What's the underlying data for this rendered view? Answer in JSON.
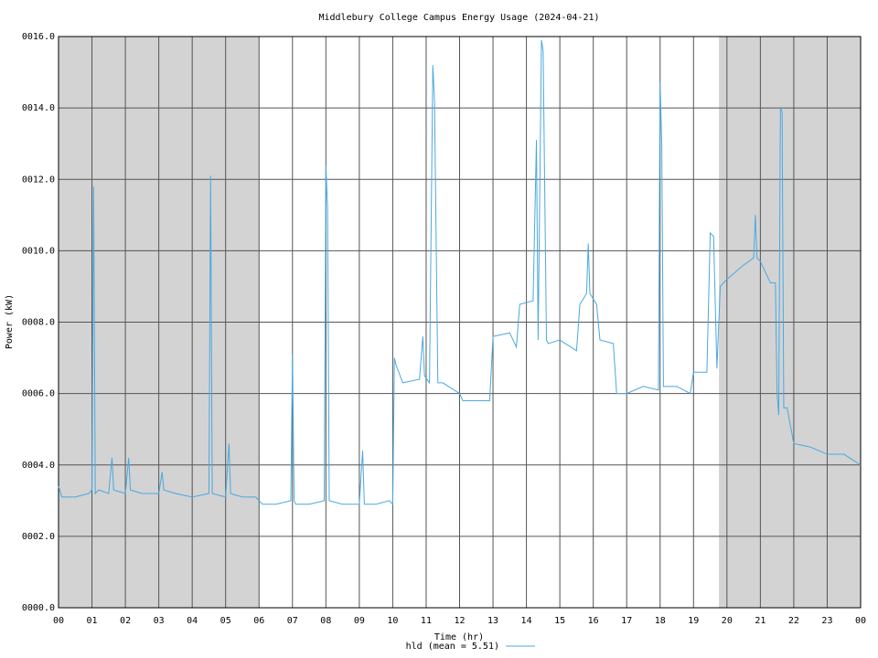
{
  "chart_data": {
    "type": "line",
    "title": "Middlebury College Campus Energy Usage (2024-04-21)",
    "x_label": "Time (hr)",
    "y_label": "Power (kW)",
    "xlim": [
      0,
      24
    ],
    "ylim": [
      0,
      16
    ],
    "xticks": [
      {
        "value": 0,
        "label": "00"
      },
      {
        "value": 1,
        "label": "01"
      },
      {
        "value": 2,
        "label": "02"
      },
      {
        "value": 3,
        "label": "03"
      },
      {
        "value": 4,
        "label": "04"
      },
      {
        "value": 5,
        "label": "05"
      },
      {
        "value": 6,
        "label": "06"
      },
      {
        "value": 7,
        "label": "07"
      },
      {
        "value": 8,
        "label": "08"
      },
      {
        "value": 9,
        "label": "09"
      },
      {
        "value": 10,
        "label": "10"
      },
      {
        "value": 11,
        "label": "11"
      },
      {
        "value": 12,
        "label": "12"
      },
      {
        "value": 13,
        "label": "13"
      },
      {
        "value": 14,
        "label": "14"
      },
      {
        "value": 15,
        "label": "15"
      },
      {
        "value": 16,
        "label": "16"
      },
      {
        "value": 17,
        "label": "17"
      },
      {
        "value": 18,
        "label": "18"
      },
      {
        "value": 19,
        "label": "19"
      },
      {
        "value": 20,
        "label": "20"
      },
      {
        "value": 21,
        "label": "21"
      },
      {
        "value": 22,
        "label": "22"
      },
      {
        "value": 23,
        "label": "23"
      },
      {
        "value": 24,
        "label": "00"
      }
    ],
    "yticks": [
      {
        "value": 0,
        "label": "0000.0"
      },
      {
        "value": 2,
        "label": "0002.0"
      },
      {
        "value": 4,
        "label": "0004.0"
      },
      {
        "value": 6,
        "label": "0006.0"
      },
      {
        "value": 8,
        "label": "0008.0"
      },
      {
        "value": 10,
        "label": "0010.0"
      },
      {
        "value": 12,
        "label": "0012.0"
      },
      {
        "value": 14,
        "label": "0014.0"
      },
      {
        "value": 16,
        "label": "0016.0"
      }
    ],
    "grid": true,
    "shaded_regions": [
      [
        0,
        6
      ],
      [
        19.76,
        24
      ]
    ],
    "shade_color": "#d3d3d3",
    "x": [
      0,
      0.1,
      0.5,
      0.9,
      1.0,
      1.05,
      1.1,
      1.2,
      1.5,
      1.6,
      1.65,
      2.0,
      2.1,
      2.15,
      2.5,
      3.0,
      3.1,
      3.15,
      3.5,
      4.0,
      4.5,
      4.55,
      4.6,
      5.0,
      5.1,
      5.15,
      5.5,
      5.9,
      6.0,
      6.1,
      6.5,
      6.95,
      7.0,
      7.05,
      7.1,
      7.5,
      7.95,
      8.0,
      8.05,
      8.1,
      8.5,
      9.0,
      9.1,
      9.15,
      9.5,
      9.9,
      10.0,
      10.05,
      10.1,
      10.3,
      10.8,
      10.9,
      10.95,
      11.1,
      11.2,
      11.25,
      11.35,
      11.5,
      12.0,
      12.1,
      12.5,
      12.9,
      13.0,
      13.5,
      13.7,
      13.8,
      14.2,
      14.3,
      14.35,
      14.45,
      14.5,
      14.6,
      14.65,
      15.0,
      15.5,
      15.6,
      15.8,
      15.85,
      15.9,
      16.1,
      16.2,
      16.6,
      16.7,
      17.0,
      17.5,
      17.95,
      18.0,
      18.05,
      18.1,
      18.5,
      18.9,
      19.0,
      19.4,
      19.5,
      19.6,
      19.7,
      19.8,
      20.0,
      20.5,
      20.8,
      20.85,
      20.9,
      21.0,
      21.3,
      21.45,
      21.5,
      21.55,
      21.6,
      21.65,
      21.7,
      21.8,
      22.0,
      22.5,
      23.0,
      23.5,
      24.0
    ],
    "series": [
      {
        "name": "hld (mean = 5.51)",
        "color": "#4aa8e0",
        "values": [
          3.4,
          3.1,
          3.1,
          3.2,
          3.3,
          11.8,
          3.2,
          3.3,
          3.2,
          4.2,
          3.3,
          3.2,
          4.2,
          3.3,
          3.2,
          3.2,
          3.8,
          3.3,
          3.2,
          3.1,
          3.2,
          12.1,
          3.2,
          3.1,
          4.6,
          3.2,
          3.1,
          3.1,
          3.0,
          2.9,
          2.9,
          3.0,
          7.1,
          3.0,
          2.9,
          2.9,
          3.0,
          12.4,
          11.2,
          3.0,
          2.9,
          2.9,
          4.4,
          2.9,
          2.9,
          3.0,
          2.9,
          7.0,
          6.8,
          6.3,
          6.4,
          7.6,
          6.5,
          6.3,
          15.2,
          14.2,
          6.3,
          6.3,
          6.0,
          5.8,
          5.8,
          5.8,
          7.6,
          7.7,
          7.3,
          8.5,
          8.6,
          13.1,
          7.5,
          15.9,
          15.6,
          7.5,
          7.4,
          7.5,
          7.2,
          8.5,
          8.8,
          10.2,
          8.8,
          8.5,
          7.5,
          7.4,
          6.0,
          6.0,
          6.2,
          6.1,
          14.7,
          13.0,
          6.2,
          6.2,
          6.0,
          6.6,
          6.6,
          10.5,
          10.4,
          6.7,
          9.0,
          9.2,
          9.6,
          9.8,
          11.0,
          9.8,
          9.7,
          9.1,
          9.1,
          6.0,
          5.4,
          14.0,
          13.9,
          5.6,
          5.6,
          4.6,
          4.5,
          4.3,
          4.3,
          4.0
        ]
      }
    ]
  }
}
